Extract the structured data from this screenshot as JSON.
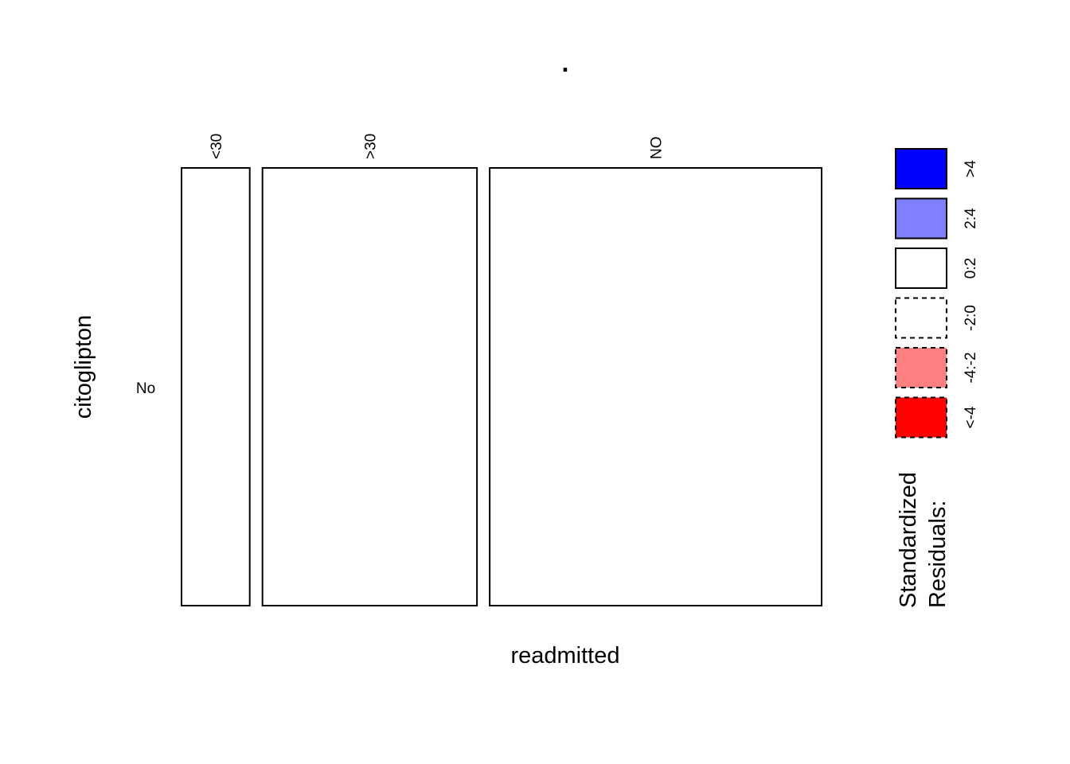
{
  "chart_data": {
    "type": "mosaic",
    "title": ".",
    "xlabel": "readmitted",
    "ylabel": "citoglipton",
    "x_categories": [
      "<30",
      ">30",
      "NO"
    ],
    "y_categories": [
      "No"
    ],
    "column_proportions": [
      0.111,
      0.349,
      0.54
    ],
    "cells": [
      {
        "x": "<30",
        "y": "No",
        "residual_band": "0:2"
      },
      {
        "x": ">30",
        "y": "No",
        "residual_band": "0:2"
      },
      {
        "x": "NO",
        "y": "No",
        "residual_band": "0:2"
      }
    ],
    "legend": {
      "title_lines": [
        "Standardized",
        "Residuals:"
      ],
      "placement": "right",
      "entries": [
        {
          "label": ">4",
          "fill": "#0000ff",
          "dashed": false
        },
        {
          "label": "2:4",
          "fill": "#8080ff",
          "dashed": false
        },
        {
          "label": "0:2",
          "fill": "#ffffff",
          "dashed": false
        },
        {
          "label": "-2:0",
          "fill": "#ffffff",
          "dashed": true
        },
        {
          "label": "-4:-2",
          "fill": "#ff8080",
          "dashed": true
        },
        {
          "label": "<-4",
          "fill": "#ff0000",
          "dashed": true
        }
      ]
    }
  }
}
